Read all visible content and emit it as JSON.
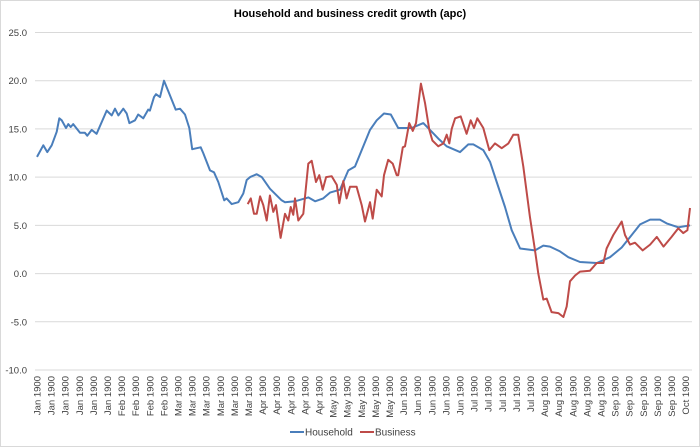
{
  "chart_data": {
    "type": "line",
    "title": "Household and business credit growth (apc)",
    "xlabel": "",
    "ylabel": "",
    "ylim": [
      -10,
      25
    ],
    "yticks": [
      "25.0",
      "20.0",
      "15.0",
      "10.0",
      "5.0",
      "0.0",
      "-5.0",
      "-10.0"
    ],
    "ytick_values": [
      25,
      20,
      15,
      10,
      5,
      0,
      -5,
      -10
    ],
    "grid": true,
    "legend": "bottom",
    "categories": [
      "Jan 1900",
      "Jan 1900",
      "Jan 1900",
      "Jan 1900",
      "Jan 1900",
      "Jan 1900",
      "Feb 1900",
      "Feb 1900",
      "Feb 1900",
      "Feb 1900",
      "Mar 1900",
      "Mar 1900",
      "Mar 1900",
      "Mar 1900",
      "Mar 1900",
      "Mar 1900",
      "Apr 1900",
      "Apr 1900",
      "Apr 1900",
      "Apr 1900",
      "Apr 1900",
      "May 1900",
      "May 1900",
      "May 1900",
      "May 1900",
      "May 1900",
      "Jun 1900",
      "Jun 1900",
      "Jun 1900",
      "Jun 1900",
      "Jun 1900",
      "Jul 1900",
      "Jul 1900",
      "Jul 1900",
      "Jul 1900",
      "Jul 1900",
      "Aug 1900",
      "Aug 1900",
      "Aug 1900",
      "Aug 1900",
      "Aug 1900",
      "Sep 1900",
      "Sep 1900",
      "Sep 1900",
      "Sep 1900",
      "Sep 1900",
      "Oct 1900"
    ],
    "series": [
      {
        "name": "Household",
        "color": "#4a7ebb",
        "points": [
          [
            0,
            12.1
          ],
          [
            0.45,
            13.3
          ],
          [
            0.73,
            12.6
          ],
          [
            1.04,
            13.3
          ],
          [
            1.4,
            14.7
          ],
          [
            1.58,
            16.1
          ],
          [
            1.75,
            15.9
          ],
          [
            2.06,
            15.1
          ],
          [
            2.22,
            15.5
          ],
          [
            2.39,
            15.2
          ],
          [
            2.57,
            15.5
          ],
          [
            3.05,
            14.6
          ],
          [
            3.4,
            14.6
          ],
          [
            3.57,
            14.3
          ],
          [
            3.88,
            14.9
          ],
          [
            4.23,
            14.5
          ],
          [
            4.94,
            16.9
          ],
          [
            5.3,
            16.4
          ],
          [
            5.53,
            17.1
          ],
          [
            5.77,
            16.4
          ],
          [
            6.12,
            17.1
          ],
          [
            6.36,
            16.6
          ],
          [
            6.55,
            15.6
          ],
          [
            6.95,
            15.9
          ],
          [
            7.18,
            16.5
          ],
          [
            7.54,
            16.1
          ],
          [
            7.89,
            17.0
          ],
          [
            8.01,
            16.9
          ],
          [
            8.3,
            18.3
          ],
          [
            8.44,
            18.6
          ],
          [
            8.72,
            18.3
          ],
          [
            9.01,
            20.0
          ],
          [
            9.31,
            18.9
          ],
          [
            9.84,
            17.0
          ],
          [
            10.14,
            17.1
          ],
          [
            10.5,
            16.5
          ],
          [
            10.8,
            15.1
          ],
          [
            11.01,
            12.9
          ],
          [
            11.61,
            13.1
          ],
          [
            11.79,
            12.5
          ],
          [
            12.27,
            10.7
          ],
          [
            12.55,
            10.5
          ],
          [
            12.86,
            9.5
          ],
          [
            13.28,
            7.6
          ],
          [
            13.45,
            7.8
          ],
          [
            13.81,
            7.2
          ],
          [
            14.28,
            7.4
          ],
          [
            14.63,
            8.3
          ],
          [
            14.87,
            9.7
          ],
          [
            15.11,
            10.0
          ],
          [
            15.58,
            10.3
          ],
          [
            15.94,
            10.0
          ],
          [
            16.52,
            8.8
          ],
          [
            17.35,
            7.6
          ],
          [
            17.59,
            7.4
          ],
          [
            18.3,
            7.5
          ],
          [
            19.24,
            7.9
          ],
          [
            19.72,
            7.5
          ],
          [
            20.3,
            7.8
          ],
          [
            20.78,
            8.4
          ],
          [
            21.49,
            8.7
          ],
          [
            22.08,
            10.7
          ],
          [
            22.55,
            11.1
          ],
          [
            23.62,
            14.9
          ],
          [
            24.09,
            15.9
          ],
          [
            24.61,
            16.6
          ],
          [
            25.09,
            16.5
          ],
          [
            25.62,
            15.1
          ],
          [
            26.57,
            15.1
          ],
          [
            27.4,
            15.6
          ],
          [
            27.87,
            14.9
          ],
          [
            28.46,
            14.0
          ],
          [
            29.06,
            13.2
          ],
          [
            30.0,
            12.6
          ],
          [
            30.59,
            13.4
          ],
          [
            30.94,
            13.4
          ],
          [
            31.65,
            12.8
          ],
          [
            32.13,
            11.6
          ],
          [
            32.6,
            9.5
          ],
          [
            33.19,
            6.9
          ],
          [
            33.67,
            4.5
          ],
          [
            34.26,
            2.6
          ],
          [
            35.32,
            2.4
          ],
          [
            35.91,
            2.9
          ],
          [
            36.38,
            2.8
          ],
          [
            37.09,
            2.3
          ],
          [
            37.68,
            1.7
          ],
          [
            38.51,
            1.2
          ],
          [
            39.7,
            1.1
          ],
          [
            40.64,
            1.7
          ],
          [
            41.47,
            2.7
          ],
          [
            42.18,
            4.0
          ],
          [
            42.77,
            5.1
          ],
          [
            43.48,
            5.6
          ],
          [
            44.18,
            5.6
          ],
          [
            44.66,
            5.2
          ],
          [
            45.48,
            4.8
          ],
          [
            46.31,
            5.0
          ]
        ]
      },
      {
        "name": "Business",
        "color": "#be4b48",
        "points": [
          [
            14.94,
            7.2
          ],
          [
            15.16,
            7.8
          ],
          [
            15.39,
            6.2
          ],
          [
            15.58,
            6.2
          ],
          [
            15.82,
            8.0
          ],
          [
            16.05,
            7.1
          ],
          [
            16.29,
            5.5
          ],
          [
            16.52,
            8.1
          ],
          [
            16.76,
            6.4
          ],
          [
            16.95,
            7.1
          ],
          [
            17.28,
            3.7
          ],
          [
            17.59,
            6.2
          ],
          [
            17.82,
            5.5
          ],
          [
            17.99,
            6.9
          ],
          [
            18.18,
            6.1
          ],
          [
            18.3,
            7.8
          ],
          [
            18.53,
            5.5
          ],
          [
            18.89,
            6.2
          ],
          [
            19.24,
            11.4
          ],
          [
            19.48,
            11.7
          ],
          [
            19.79,
            9.5
          ],
          [
            20.02,
            10.2
          ],
          [
            20.26,
            8.7
          ],
          [
            20.5,
            10.0
          ],
          [
            20.9,
            10.1
          ],
          [
            21.26,
            9.2
          ],
          [
            21.44,
            7.3
          ],
          [
            21.72,
            9.6
          ],
          [
            21.96,
            7.8
          ],
          [
            22.2,
            9.0
          ],
          [
            22.67,
            9.0
          ],
          [
            23.03,
            7.1
          ],
          [
            23.26,
            5.4
          ],
          [
            23.62,
            7.4
          ],
          [
            23.81,
            5.7
          ],
          [
            24.09,
            8.7
          ],
          [
            24.45,
            8.0
          ],
          [
            24.61,
            10.2
          ],
          [
            24.91,
            11.8
          ],
          [
            25.23,
            11.4
          ],
          [
            25.51,
            10.2
          ],
          [
            25.62,
            10.2
          ],
          [
            25.94,
            13.1
          ],
          [
            26.1,
            13.2
          ],
          [
            26.4,
            15.6
          ],
          [
            26.65,
            14.8
          ],
          [
            26.88,
            15.6
          ],
          [
            27.23,
            19.7
          ],
          [
            27.52,
            17.7
          ],
          [
            27.82,
            14.9
          ],
          [
            28.04,
            13.8
          ],
          [
            28.46,
            13.2
          ],
          [
            28.82,
            13.5
          ],
          [
            29.06,
            14.4
          ],
          [
            29.24,
            13.5
          ],
          [
            29.41,
            15.0
          ],
          [
            29.65,
            16.1
          ],
          [
            30.05,
            16.3
          ],
          [
            30.47,
            14.5
          ],
          [
            30.76,
            15.9
          ],
          [
            30.99,
            15.1
          ],
          [
            31.23,
            16.1
          ],
          [
            31.65,
            15.1
          ],
          [
            32.08,
            12.8
          ],
          [
            32.48,
            13.5
          ],
          [
            32.96,
            13.0
          ],
          [
            33.43,
            13.5
          ],
          [
            33.78,
            14.4
          ],
          [
            34.13,
            14.4
          ],
          [
            34.49,
            11.1
          ],
          [
            34.96,
            5.9
          ],
          [
            35.32,
            2.4
          ],
          [
            35.55,
            0.0
          ],
          [
            35.91,
            -2.7
          ],
          [
            36.15,
            -2.6
          ],
          [
            36.5,
            -4.0
          ],
          [
            36.97,
            -4.1
          ],
          [
            37.33,
            -4.5
          ],
          [
            37.57,
            -3.4
          ],
          [
            37.8,
            -0.8
          ],
          [
            38.16,
            -0.2
          ],
          [
            38.51,
            0.2
          ],
          [
            39.22,
            0.3
          ],
          [
            39.7,
            1.1
          ],
          [
            40.17,
            1.1
          ],
          [
            40.4,
            2.6
          ],
          [
            40.87,
            4.0
          ],
          [
            41.47,
            5.4
          ],
          [
            41.7,
            4.0
          ],
          [
            42.06,
            3.0
          ],
          [
            42.41,
            3.2
          ],
          [
            42.96,
            2.4
          ],
          [
            43.48,
            3.0
          ],
          [
            43.96,
            3.8
          ],
          [
            44.43,
            2.8
          ],
          [
            45.01,
            3.8
          ],
          [
            45.48,
            4.7
          ],
          [
            45.84,
            4.2
          ],
          [
            46.13,
            4.5
          ],
          [
            46.31,
            6.8
          ]
        ]
      }
    ]
  }
}
